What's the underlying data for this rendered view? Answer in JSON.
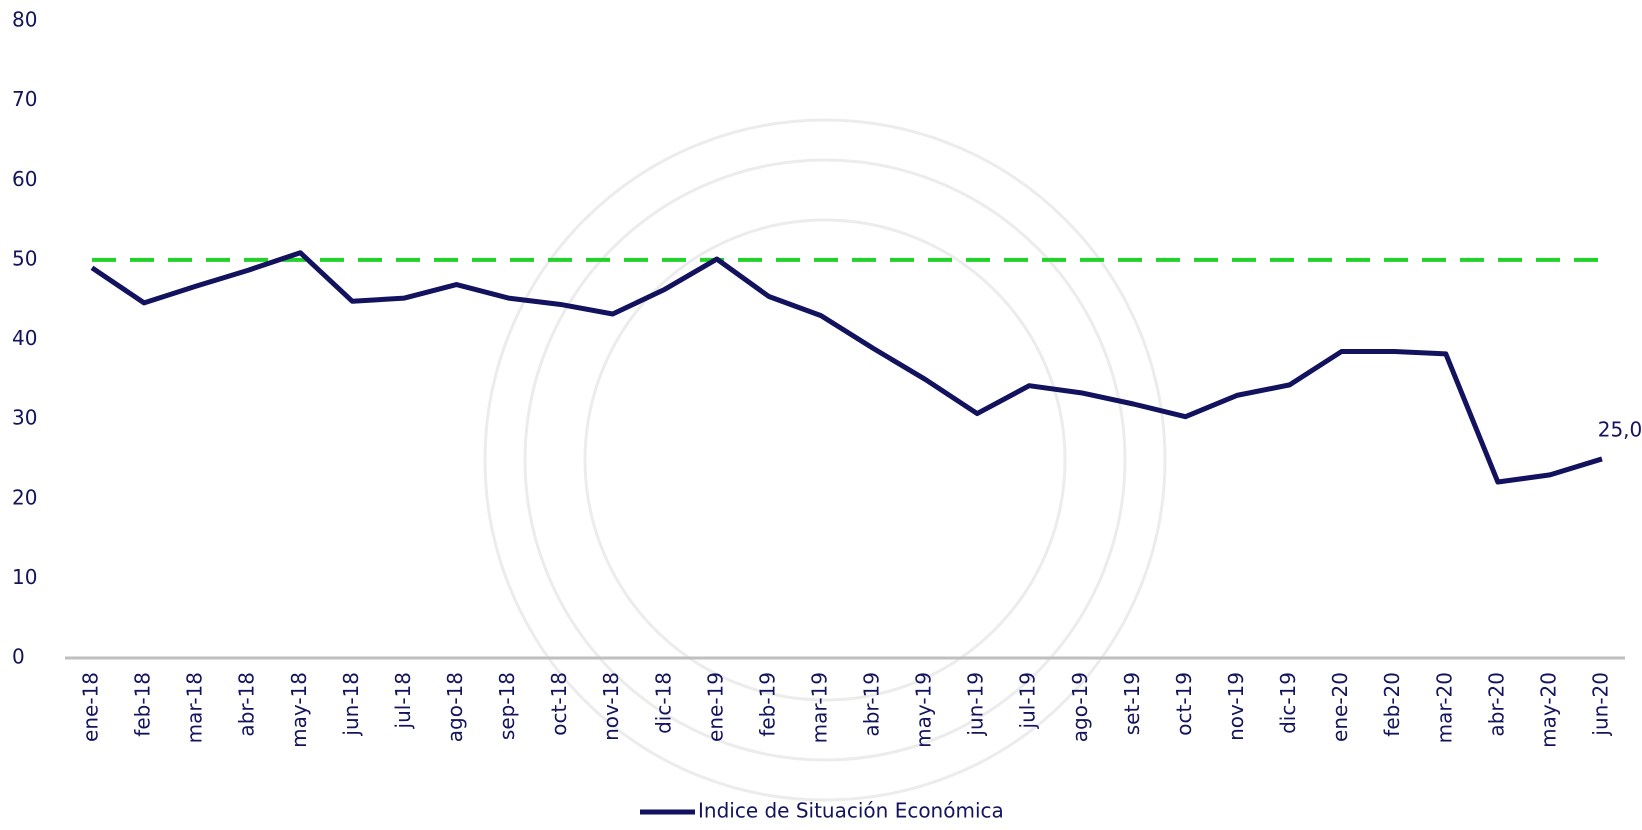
{
  "chart_data": {
    "type": "line",
    "categories": [
      "ene-18",
      "feb-18",
      "mar-18",
      "abr-18",
      "may-18",
      "jun-18",
      "jul-18",
      "ago-18",
      "sep-18",
      "oct-18",
      "nov-18",
      "dic-18",
      "ene-19",
      "feb-19",
      "mar-19",
      "abr-19",
      "may-19",
      "jun-19",
      "jul-19",
      "ago-19",
      "set-19",
      "oct-19",
      "nov-19",
      "dic-19",
      "ene-20",
      "feb-20",
      "mar-20",
      "abr-20",
      "may-20",
      "jun-20"
    ],
    "series": [
      {
        "name": "Indice de Situación Económica",
        "color": "#12125e",
        "values": [
          49.0,
          44.6,
          46.7,
          48.7,
          50.9,
          44.8,
          45.2,
          46.9,
          45.2,
          44.4,
          43.2,
          46.3,
          50.1,
          45.4,
          43.0,
          38.9,
          35.0,
          30.7,
          34.2,
          33.3,
          31.9,
          30.3,
          33.0,
          34.3,
          38.5,
          38.5,
          38.2,
          22.1,
          23.0,
          25.0
        ],
        "value_labels": [
          null,
          null,
          null,
          null,
          null,
          null,
          null,
          null,
          null,
          null,
          null,
          null,
          null,
          null,
          null,
          null,
          null,
          null,
          null,
          null,
          null,
          null,
          null,
          null,
          null,
          null,
          null,
          null,
          null,
          "25,0"
        ]
      }
    ],
    "reference_line": {
      "value": 50,
      "color": "#22d12a",
      "style": "dashed"
    },
    "ylim": [
      0,
      80
    ],
    "yticks": [
      0,
      10,
      20,
      30,
      40,
      50,
      60,
      70,
      80
    ],
    "grid": false,
    "legend": "bottom"
  }
}
